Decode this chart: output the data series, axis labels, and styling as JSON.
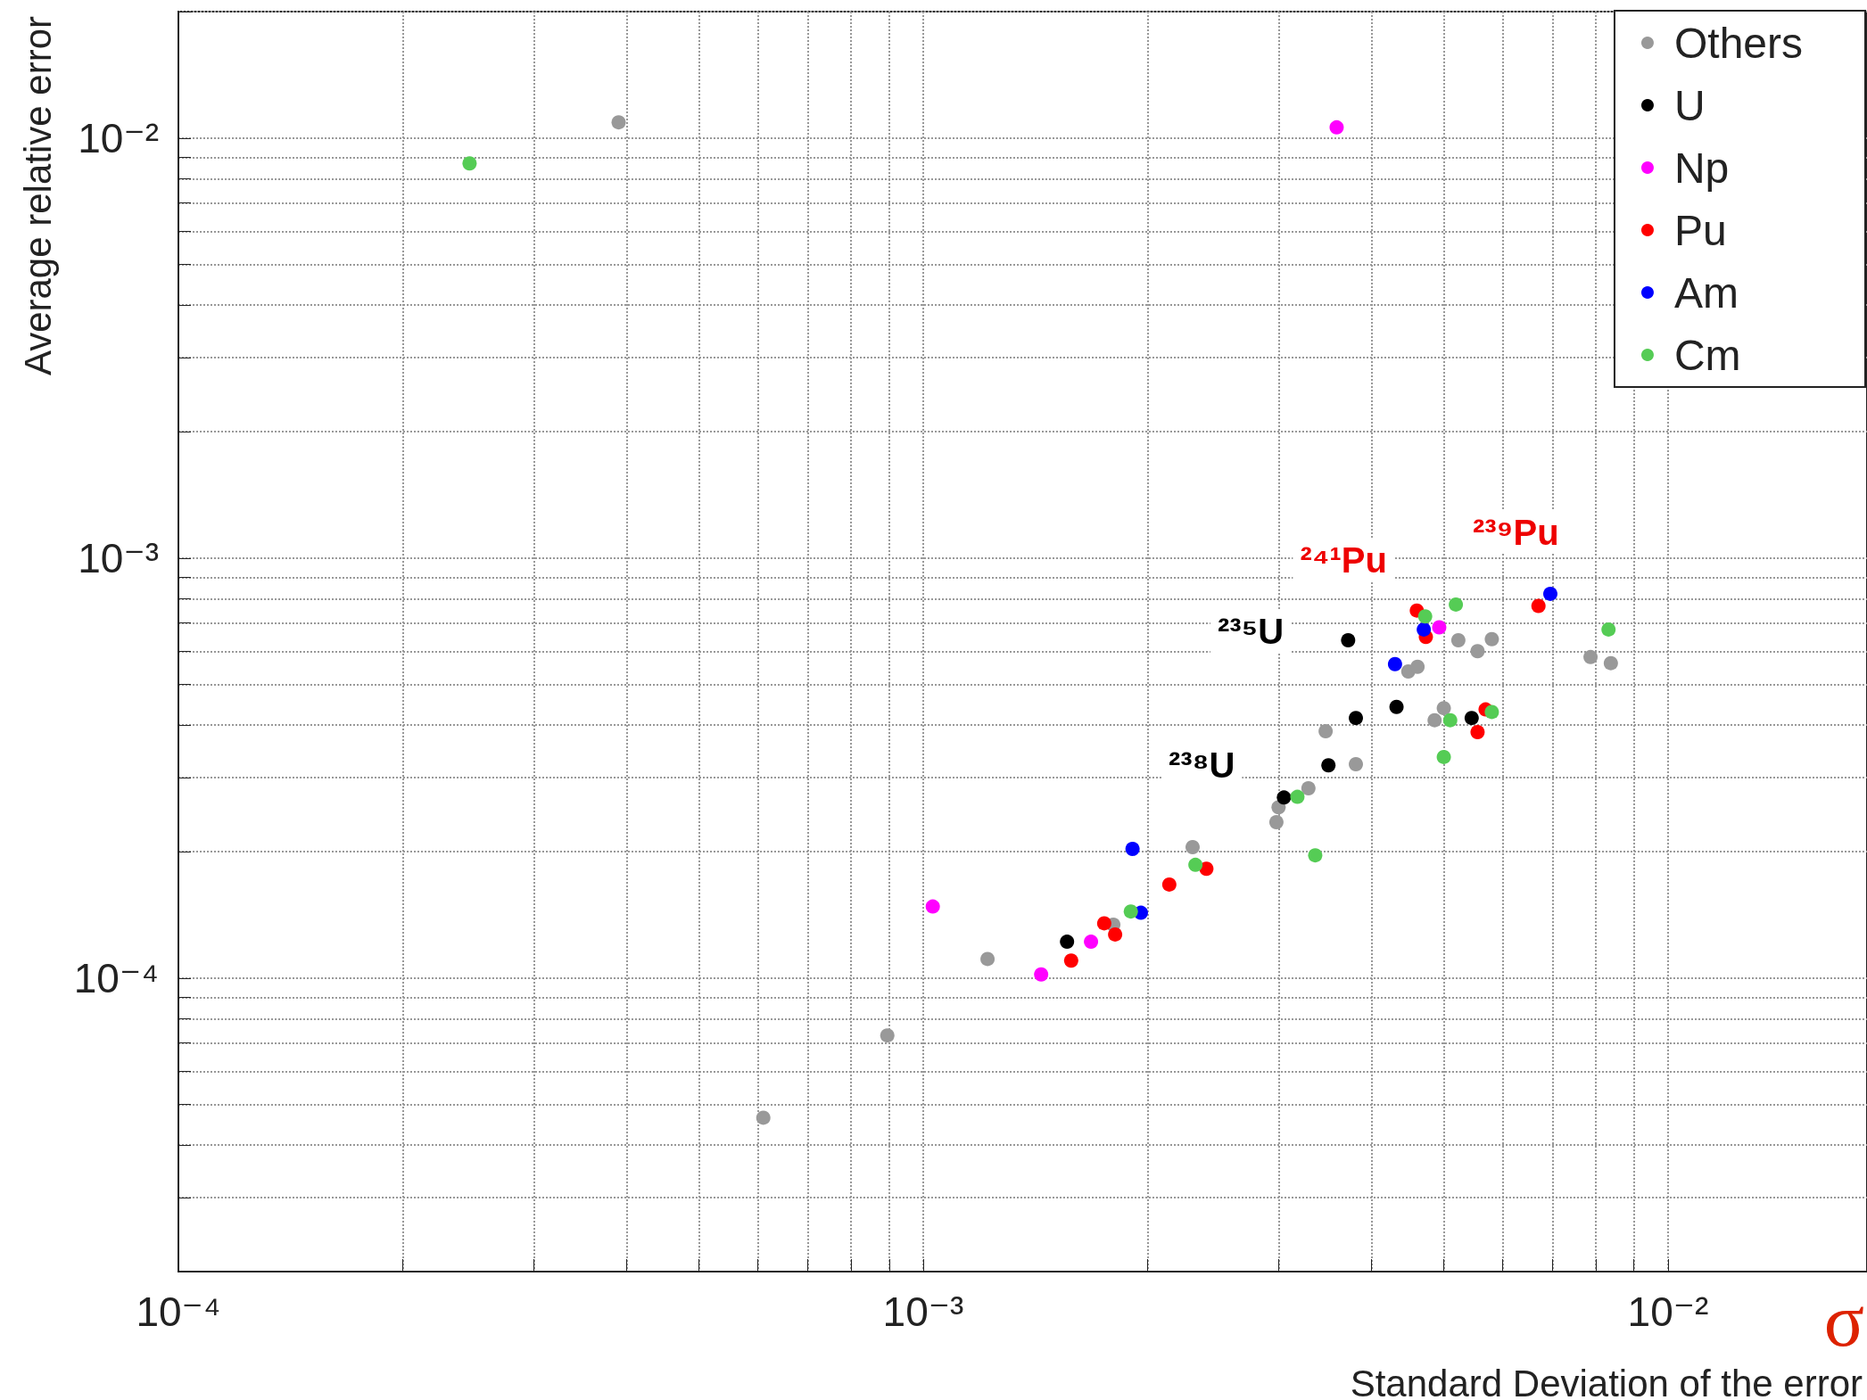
{
  "chart_data": {
    "type": "scatter",
    "xlabel": "Standard Deviation of the error",
    "ylabel": "Average relative error",
    "log": "xy",
    "grid": true,
    "legend": "top right",
    "marker": "circle",
    "xlim": [
      0.0001,
      0.0185
    ],
    "ylim": [
      2e-05,
      0.02
    ],
    "xticks": [
      {
        "value": 0.0001,
        "label": "10⁻⁴"
      },
      {
        "value": 0.001,
        "label": "10⁻³"
      },
      {
        "value": 0.01,
        "label": "10⁻²"
      }
    ],
    "yticks": [
      {
        "value": 0.0001,
        "label": "10⁻⁴"
      },
      {
        "value": 0.001,
        "label": "10⁻³"
      },
      {
        "value": 0.01,
        "label": "10⁻²"
      }
    ],
    "series": [
      {
        "name": "Others",
        "color": "#999999",
        "x": [
          0.00039,
          0.00061,
          0.000895,
          0.00122,
          0.0018,
          0.0023,
          0.00298,
          0.003,
          0.00329,
          0.00347,
          0.00381,
          0.00448,
          0.00461,
          0.00486,
          0.005,
          0.00523,
          0.00555,
          0.0058,
          0.00787,
          0.00838
        ],
        "values": [
          0.0109,
          4.65e-05,
          7.3e-05,
          0.000111,
          0.000134,
          0.000205,
          0.000235,
          0.000255,
          0.000283,
          0.000387,
          0.000323,
          0.000537,
          0.000551,
          0.000411,
          0.000439,
          0.000637,
          0.0006,
          0.000641,
          0.000581,
          0.000562
        ]
      },
      {
        "name": "U",
        "color": "#000000",
        "x": [
          0.00372,
          0.00432,
          0.00381,
          0.0035,
          0.00305,
          0.00545,
          0.00156
        ],
        "values": [
          0.000637,
          0.000442,
          0.000416,
          0.000321,
          0.000269,
          0.000416,
          0.000122
        ]
      },
      {
        "name": "Np",
        "color": "#ff00ff",
        "x": [
          0.00359,
          0.00103,
          0.00144,
          0.00168,
          0.00493
        ],
        "values": [
          0.0106,
          0.000148,
          0.000102,
          0.000122,
          0.000684
        ]
      },
      {
        "name": "Pu",
        "color": "#ff0000",
        "x": [
          0.0067,
          0.0046,
          0.00473,
          0.00569,
          0.00555,
          0.00158,
          0.00175,
          0.00181,
          0.00214,
          0.0024
        ],
        "values": [
          0.000769,
          0.00075,
          0.000649,
          0.000436,
          0.000385,
          0.00011,
          0.000135,
          0.000127,
          0.000167,
          0.000182
        ]
      },
      {
        "name": "Am",
        "color": "#0000ff",
        "x": [
          0.00695,
          0.0047,
          0.0043,
          0.00191,
          0.00196
        ],
        "values": [
          0.000822,
          0.000676,
          0.000559,
          0.000203,
          0.000143
        ]
      },
      {
        "name": "Cm",
        "color": "#55cc55",
        "x": [
          0.000246,
          0.00519,
          0.00472,
          0.00832,
          0.0051,
          0.0058,
          0.005,
          0.00336,
          0.00318,
          0.00232,
          0.0019
        ],
        "values": [
          0.0087,
          0.000775,
          0.000726,
          0.000676,
          0.000411,
          0.00043,
          0.000336,
          0.000196,
          0.00027,
          0.000186,
          0.000144
        ]
      }
    ],
    "annotations": [
      "²³⁵U",
      "²³⁸U",
      "²⁴¹Pu",
      "²³⁹Pu",
      "σ"
    ]
  }
}
